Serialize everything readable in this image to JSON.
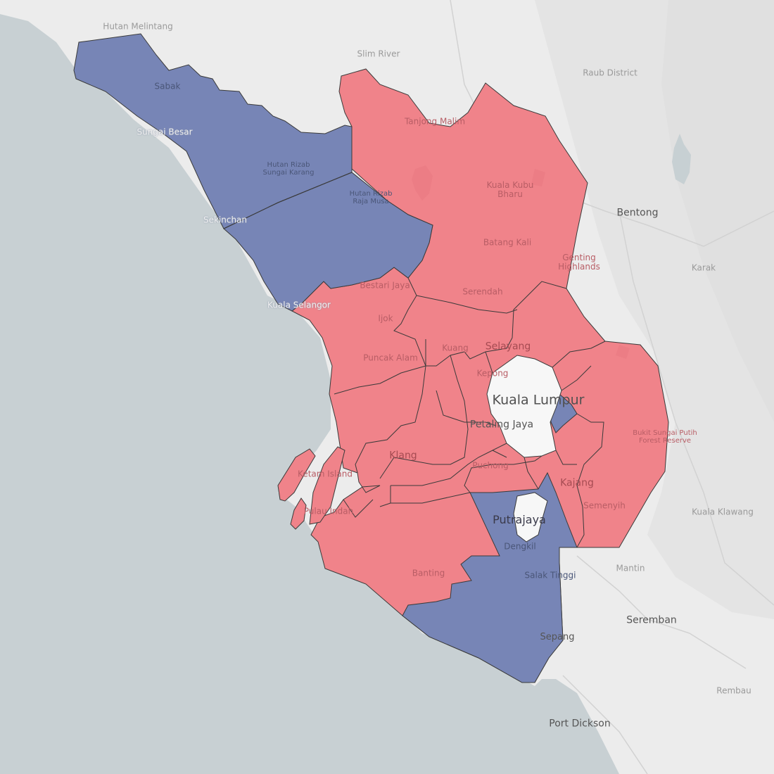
{
  "map": {
    "colors": {
      "sea": "#c8d0d3",
      "land": "#ececec",
      "red_fill": "#f0838a",
      "blue_fill": "#7785b6",
      "border": "#3a3a3a",
      "urban": "#f7f7f7"
    },
    "parties": {
      "red": "red-winner",
      "blue": "blue-winner"
    }
  },
  "labels": {
    "hutan_melintang": "Hutan Melintang",
    "slim_river": "Slim River",
    "raub_district": "Raub District",
    "sabak": "Sabak",
    "sungai_besar": "Sungai Besar",
    "tanjong_malim": "Tanjong Malim",
    "hutan_rizab_sungai_karang": "Hutan Rizab\nSungai Karang",
    "hutan_rizab_raja_musa": "Hutan Rizab\nRaja Musa",
    "kuala_kubu_bharu": "Kuala Kubu\nBharu",
    "bentong": "Bentong",
    "sekinchan": "Sekinchan",
    "batang_kali": "Batang Kali",
    "genting_highlands": "Genting\nHighlands",
    "karak": "Karak",
    "bestari_jaya": "Bestari Jaya",
    "kuala_selangor": "Kuala Selangor",
    "serendah": "Serendah",
    "ijok": "Ijok",
    "selayang": "Selayang",
    "kuang": "Kuang",
    "puncak_alam": "Puncak Alam",
    "kepong": "Kepong",
    "kuala_lumpur": "Kuala Lumpur",
    "bukit_sungai_putih": "Bukit Sungai Putih\nForest Reserve",
    "petaling_jaya": "Petaling Jaya",
    "klang": "Klang",
    "ketam_island": "Ketam Island",
    "puchong": "Puchong",
    "kajang": "Kajang",
    "pulau_indah": "Pulau Indah",
    "semenyih": "Semenyih",
    "kuala_klawang": "Kuala Klawang",
    "putrajaya": "Putrajaya",
    "dengkil": "Dengkil",
    "mantin": "Mantin",
    "banting": "Banting",
    "salak_tinggi": "Salak Tinggi",
    "seremban": "Seremban",
    "sepang": "Sepang",
    "rembau": "Rembau",
    "port_dickson": "Port Dickson"
  }
}
